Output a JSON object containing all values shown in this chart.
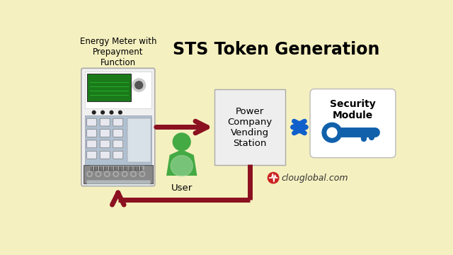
{
  "title": "STS Token Generation",
  "bg_color": "#F5F0C0",
  "meter_label": "Energy Meter with\nPrepayment\nFunction",
  "vending_label": "Power\nCompany\nVending\nStation",
  "security_label": "Security\nModule",
  "user_label": "User",
  "watermark": "clouglobal.com",
  "arrow_color": "#8B1020",
  "blue_arrow_color": "#1060CC",
  "box_fill": "#EEEEEE",
  "box_edge": "#AAAAAA",
  "security_fill": "#FFFFFF",
  "security_edge": "#BBBBBB",
  "key_color": "#1060AA",
  "user_color_top": "#44AA44",
  "user_color_bot": "#AADDAA",
  "title_fontsize": 17,
  "label_fontsize": 9.5,
  "watermark_fontsize": 9,
  "meter_outer": "#E8E8E8",
  "meter_display_bg": "#C8D4E0",
  "meter_screen": "#1A7A1A",
  "meter_keypad": "#B0C0D0",
  "meter_terminal": "#888888"
}
